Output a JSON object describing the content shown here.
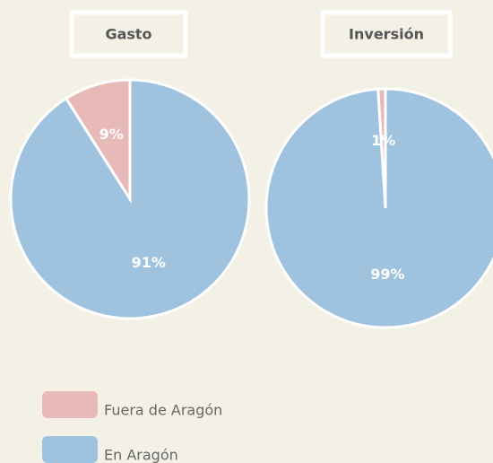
{
  "chart_data": [
    {
      "type": "pie",
      "title": "Gasto",
      "categories": [
        "Fuera de Aragón",
        "En Aragón"
      ],
      "values": [
        9,
        91
      ],
      "value_labels": [
        "9%",
        "91%"
      ],
      "colors": [
        "#e8b9b9",
        "#9fc3df"
      ]
    },
    {
      "type": "pie",
      "title": "Inversión",
      "categories": [
        "Fuera de Aragón",
        "En Aragón"
      ],
      "values": [
        1,
        99
      ],
      "value_labels": [
        "1%",
        "99%"
      ],
      "colors": [
        "#e8b9b9",
        "#9fc3df"
      ]
    }
  ]
}
